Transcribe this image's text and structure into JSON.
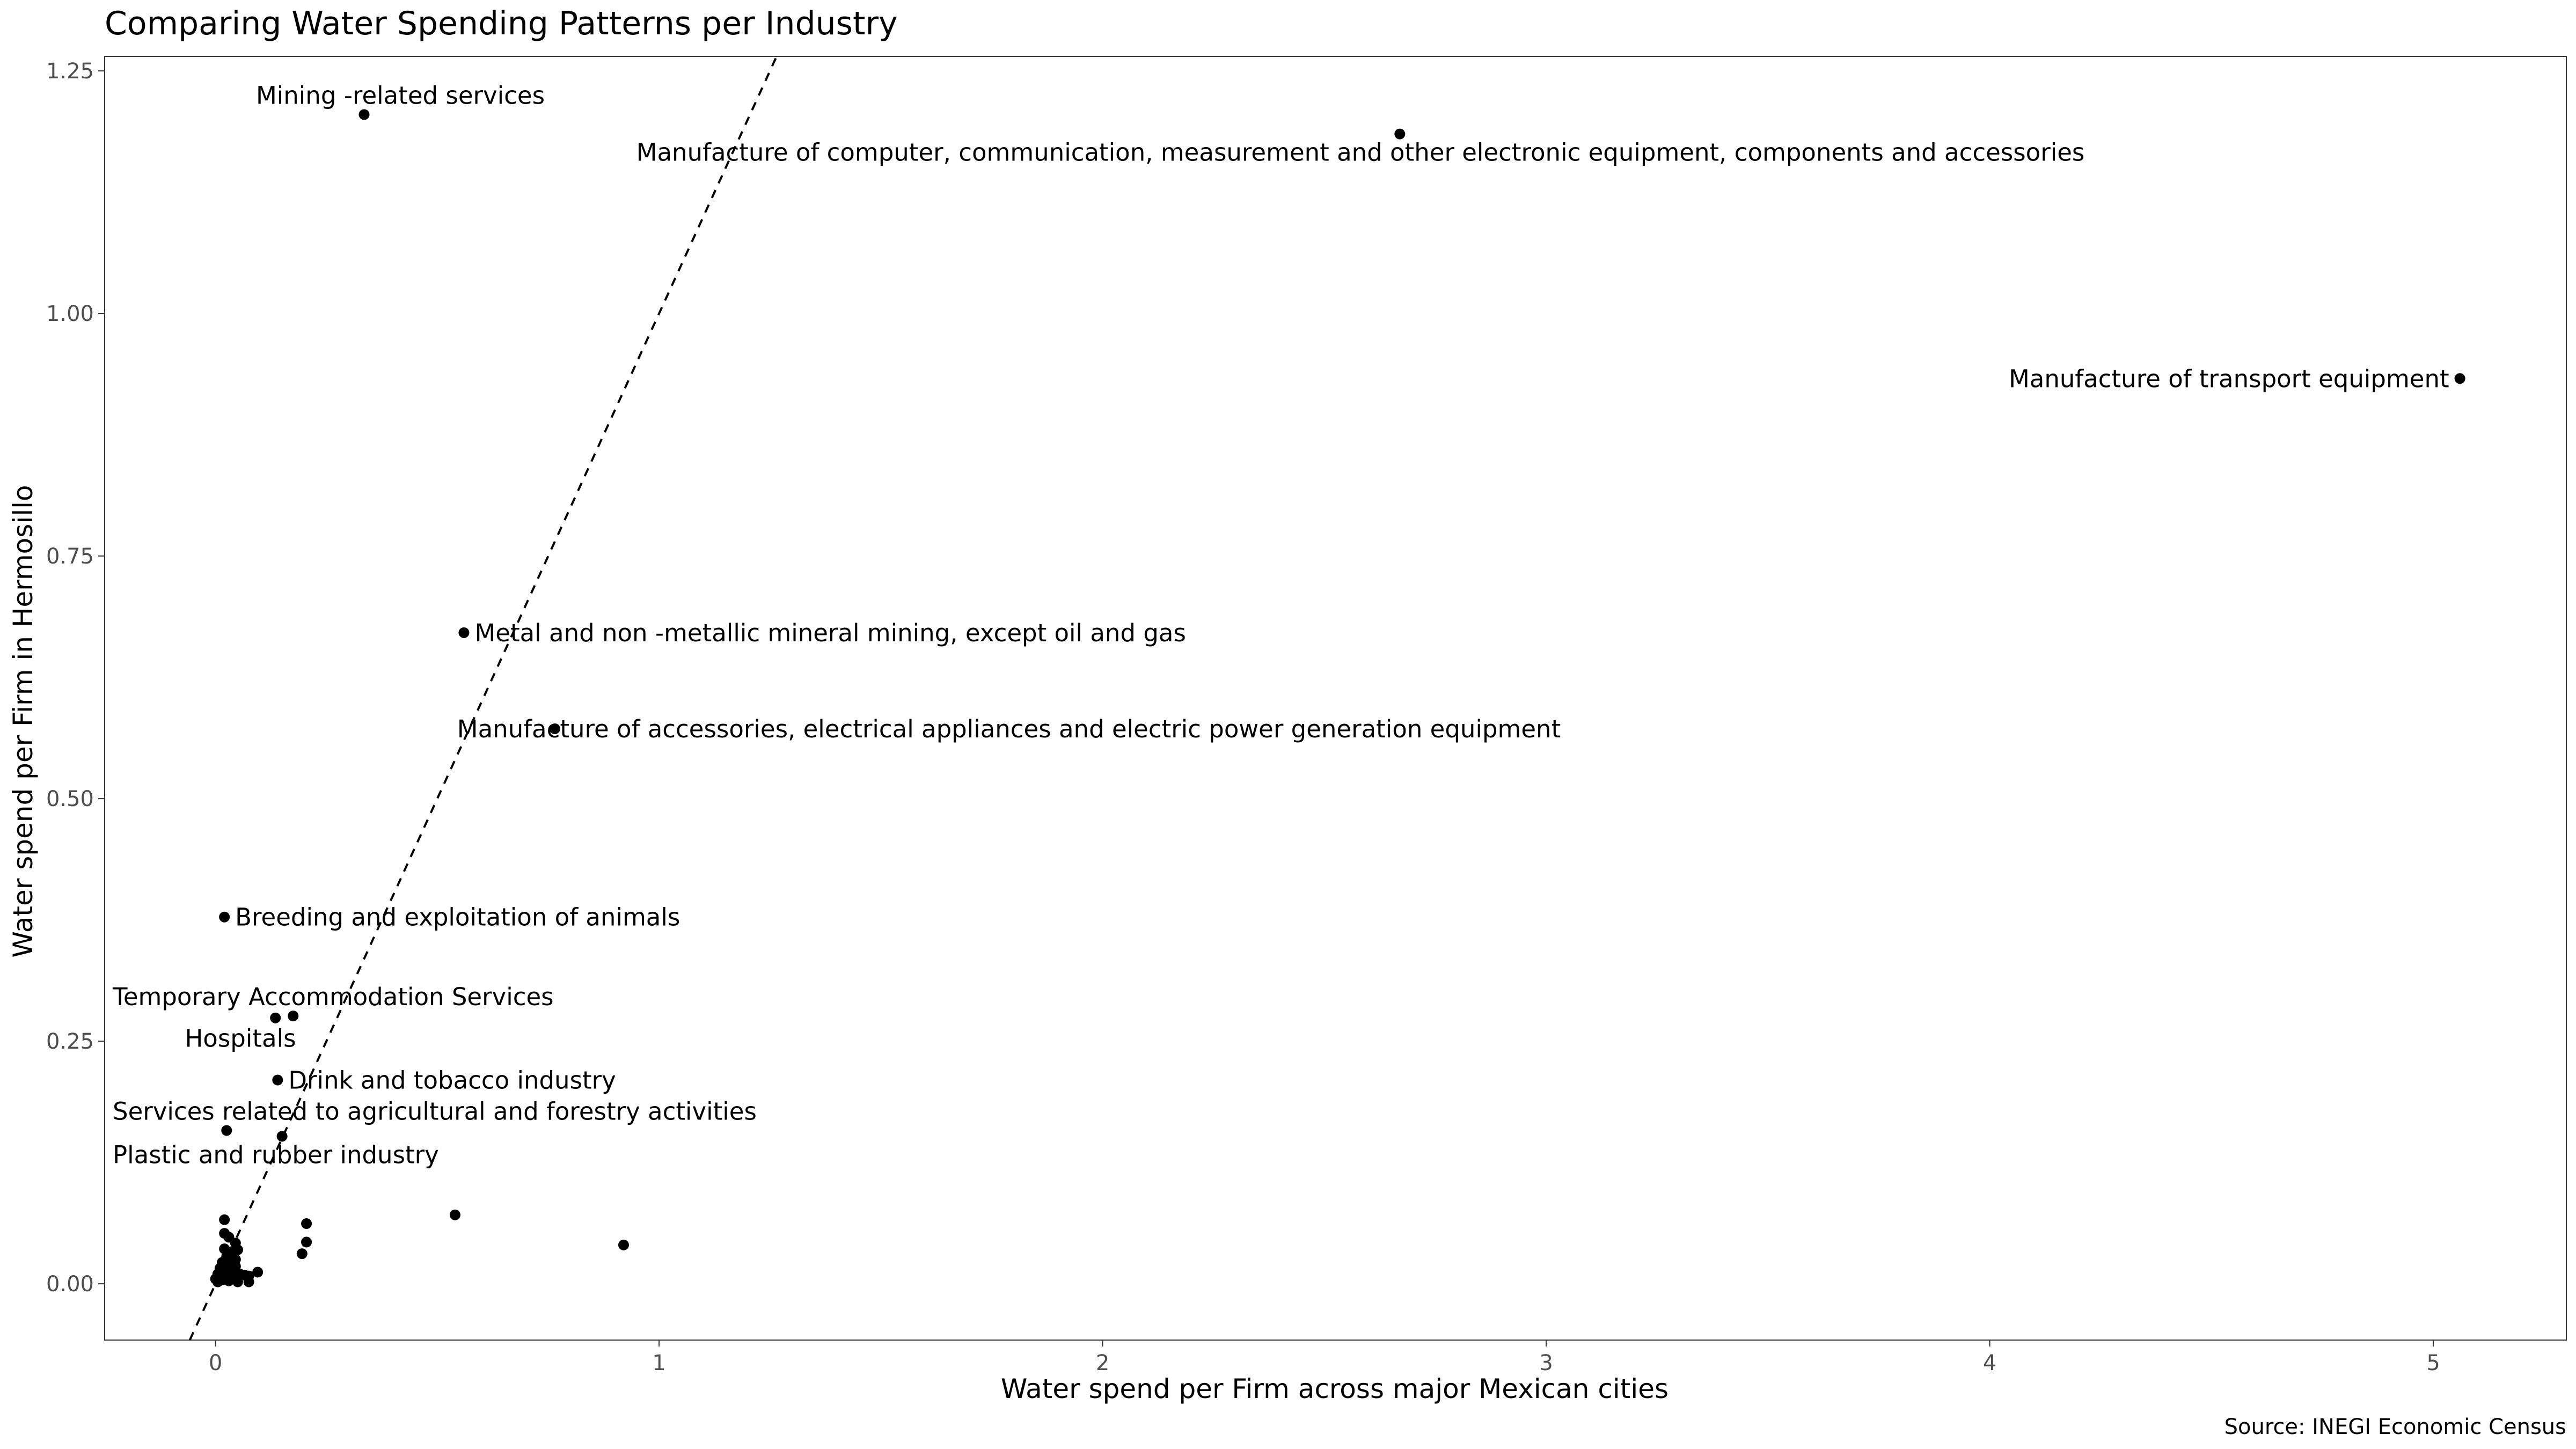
{
  "chart_data": {
    "type": "scatter",
    "title": "Comparing Water Spending Patterns per Industry",
    "xlabel": "Water spend per Firm across major Mexican cities",
    "ylabel": "Water spend per Firm in Hermosillo",
    "caption": "Source: INEGI Economic Census",
    "xlim": [
      -0.25,
      5.3
    ],
    "ylim": [
      -0.058,
      1.265
    ],
    "x_ticks": [
      0,
      1,
      2,
      3,
      4,
      5
    ],
    "x_tick_labels": [
      "0",
      "1",
      "2",
      "3",
      "4",
      "5"
    ],
    "y_ticks": [
      0,
      0.25,
      0.5,
      0.75,
      1.0,
      1.25
    ],
    "y_tick_labels": [
      "0.00",
      "0.25",
      "0.50",
      "0.75",
      "1.00",
      "1.25"
    ],
    "grid": false,
    "reference_line": {
      "style": "dashed",
      "slope": 1.0,
      "intercept": 0
    },
    "labeled_points": [
      {
        "x": 0.335,
        "y": 1.205,
        "label": "Mining -related services",
        "align": "middle",
        "pos": "above"
      },
      {
        "x": 2.67,
        "y": 1.185,
        "label": "Manufacture of computer, communication, measurement and other electronic equipment, components and accessories",
        "align": "middle",
        "pos": "below"
      },
      {
        "x": 5.06,
        "y": 0.933,
        "label": "Manufacture of transport equipment",
        "align": "end",
        "pos": "left"
      },
      {
        "x": 0.56,
        "y": 0.671,
        "label": "Metal and non -metallic mineral mining, except oil and gas",
        "align": "start",
        "pos": "right"
      },
      {
        "x": 0.765,
        "y": 0.572,
        "label": "Manufacture of accessories, electrical appliances and electric power generation equipment",
        "align": "middle",
        "pos": "center"
      },
      {
        "x": 0.02,
        "y": 0.378,
        "label": "Breeding and exploitation of animals",
        "align": "start",
        "pos": "right"
      },
      {
        "x": 0.175,
        "y": 0.276,
        "label": "Temporary Accommodation Services",
        "align": "middle",
        "pos": "above"
      },
      {
        "x": 0.135,
        "y": 0.274,
        "label": "Hospitals",
        "align": "middle",
        "pos": "below"
      },
      {
        "x": 0.14,
        "y": 0.21,
        "label": "Drink and tobacco industry",
        "align": "start",
        "pos": "right"
      },
      {
        "x": 0.025,
        "y": 0.158,
        "label": "Services related to agricultural and forestry activities",
        "align": "start",
        "pos": "above"
      },
      {
        "x": 0.15,
        "y": 0.152,
        "label": "Plastic and rubber industry",
        "align": "middle",
        "pos": "below"
      }
    ],
    "unlabeled_points": [
      {
        "x": 0.54,
        "y": 0.071
      },
      {
        "x": 0.92,
        "y": 0.04
      },
      {
        "x": 0.205,
        "y": 0.062
      },
      {
        "x": 0.205,
        "y": 0.043
      },
      {
        "x": 0.195,
        "y": 0.031
      },
      {
        "x": 0.02,
        "y": 0.066
      },
      {
        "x": 0.02,
        "y": 0.052
      },
      {
        "x": 0.03,
        "y": 0.048
      },
      {
        "x": 0.045,
        "y": 0.042
      },
      {
        "x": 0.02,
        "y": 0.036
      },
      {
        "x": 0.035,
        "y": 0.033
      },
      {
        "x": 0.05,
        "y": 0.035
      },
      {
        "x": 0.025,
        "y": 0.028
      },
      {
        "x": 0.04,
        "y": 0.025
      },
      {
        "x": 0.015,
        "y": 0.022
      },
      {
        "x": 0.03,
        "y": 0.02
      },
      {
        "x": 0.045,
        "y": 0.018
      },
      {
        "x": 0.01,
        "y": 0.016
      },
      {
        "x": 0.02,
        "y": 0.013
      },
      {
        "x": 0.035,
        "y": 0.012
      },
      {
        "x": 0.005,
        "y": 0.01
      },
      {
        "x": 0.055,
        "y": 0.01
      },
      {
        "x": 0.065,
        "y": 0.009
      },
      {
        "x": 0.01,
        "y": 0.008
      },
      {
        "x": 0.025,
        "y": 0.007
      },
      {
        "x": 0.04,
        "y": 0.006
      },
      {
        "x": 0.0,
        "y": 0.005
      },
      {
        "x": 0.015,
        "y": 0.004
      },
      {
        "x": 0.03,
        "y": 0.003
      },
      {
        "x": 0.005,
        "y": 0.002
      },
      {
        "x": 0.05,
        "y": 0.002
      },
      {
        "x": 0.075,
        "y": 0.008
      },
      {
        "x": 0.095,
        "y": 0.012
      },
      {
        "x": 0.075,
        "y": 0.002
      },
      {
        "x": 0.045,
        "y": 0.025
      }
    ]
  }
}
